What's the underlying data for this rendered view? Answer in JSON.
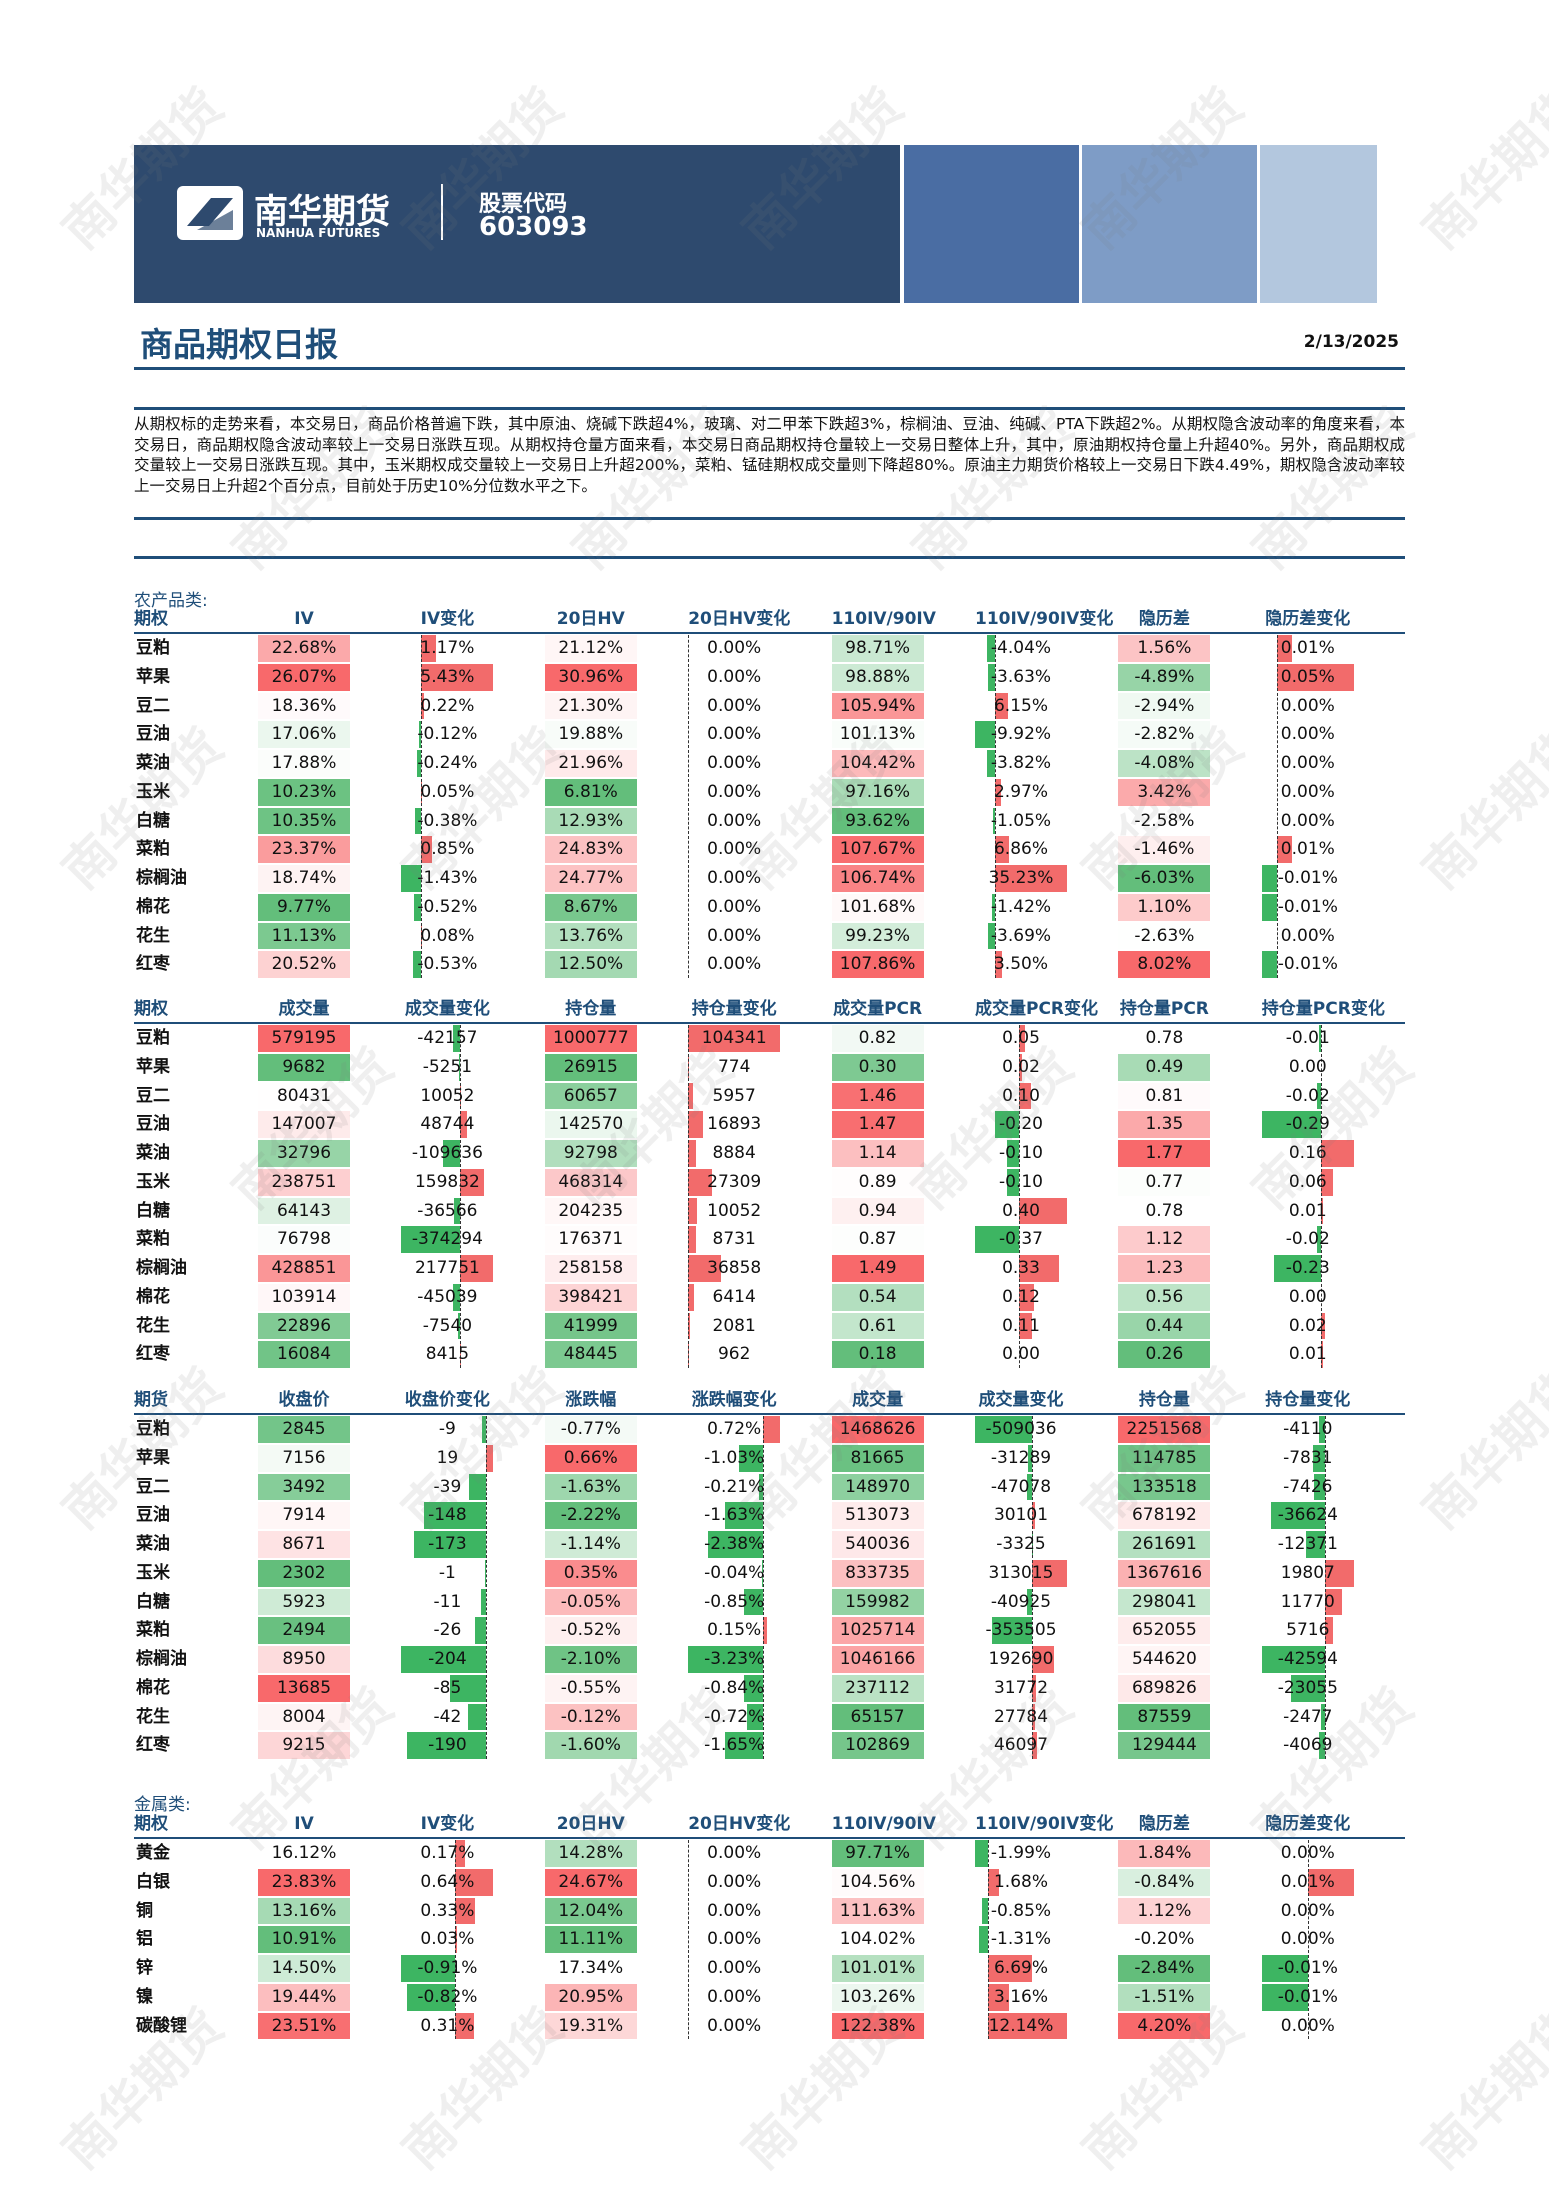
{
  "header": {
    "logo_cn": "南华期货",
    "logo_en": "NANHUA FUTURES",
    "stock_label": "股票代码",
    "stock_code": "603093"
  },
  "title": "商品期权日报",
  "date": "2/13/2025",
  "summary": "从期权标的走势来看，本交易日，商品价格普遍下跌，其中原油、烧碱下跌超4%，玻璃、对二甲苯下跌超3%，棕榈油、豆油、纯碱、PTA下跌超2%。从期权隐含波动率的角度来看，本交易日，商品期权隐含波动率较上一交易日涨跌互现。从期权持仓量方面来看，本交易日商品期权持仓量较上一交易日整体上升，其中，原油期权持仓量上升超40%。另外，商品期权成交量较上一交易日涨跌互现。其中，玉米期权成交量较上一交易日上升超200%，菜粕、锰硅期权成交量则下降超80%。原油主力期货价格较上一交易日下跌4.49%，期权隐含波动率较上一交易日上升超2个百分点，目前处于历史10%分位数水平之下。",
  "watermark": "南华期货",
  "sections": [
    {
      "label": "农产品类:",
      "tables": [
        {
          "header": [
            "期权",
            "IV",
            "IV变化",
            "20日HV",
            "20日HV变化",
            "110IV/90IV",
            "110IV/90IV变化",
            "隐历差",
            "隐历差变化"
          ],
          "rows": [
            [
              "豆粕",
              "22.68%",
              "1.17%",
              "21.12%",
              "0.00%",
              "98.71%",
              "-4.04%",
              "1.56%",
              "0.01%"
            ],
            [
              "苹果",
              "26.07%",
              "5.43%",
              "30.96%",
              "0.00%",
              "98.88%",
              "-3.63%",
              "-4.89%",
              "0.05%"
            ],
            [
              "豆二",
              "18.36%",
              "0.22%",
              "21.30%",
              "0.00%",
              "105.94%",
              "6.15%",
              "-2.94%",
              "0.00%"
            ],
            [
              "豆油",
              "17.06%",
              "-0.12%",
              "19.88%",
              "0.00%",
              "101.13%",
              "-9.92%",
              "-2.82%",
              "0.00%"
            ],
            [
              "菜油",
              "17.88%",
              "-0.24%",
              "21.96%",
              "0.00%",
              "104.42%",
              "-3.82%",
              "-4.08%",
              "0.00%"
            ],
            [
              "玉米",
              "10.23%",
              "0.05%",
              "6.81%",
              "0.00%",
              "97.16%",
              "2.97%",
              "3.42%",
              "0.00%"
            ],
            [
              "白糖",
              "10.35%",
              "-0.38%",
              "12.93%",
              "0.00%",
              "93.62%",
              "-1.05%",
              "-2.58%",
              "0.00%"
            ],
            [
              "菜粕",
              "23.37%",
              "0.85%",
              "24.83%",
              "0.00%",
              "107.67%",
              "6.86%",
              "-1.46%",
              "0.01%"
            ],
            [
              "棕榈油",
              "18.74%",
              "-1.43%",
              "24.77%",
              "0.00%",
              "106.74%",
              "35.23%",
              "-6.03%",
              "-0.01%"
            ],
            [
              "棉花",
              "9.77%",
              "-0.52%",
              "8.67%",
              "0.00%",
              "101.68%",
              "-1.42%",
              "1.10%",
              "-0.01%"
            ],
            [
              "花生",
              "11.13%",
              "0.08%",
              "13.76%",
              "0.00%",
              "99.23%",
              "-3.69%",
              "-2.63%",
              "0.00%"
            ],
            [
              "红枣",
              "20.52%",
              "-0.53%",
              "12.50%",
              "0.00%",
              "107.86%",
              "3.50%",
              "8.02%",
              "-0.01%"
            ]
          ]
        },
        {
          "header": [
            "期权",
            "成交量",
            "成交量变化",
            "持仓量",
            "持仓量变化",
            "成交量PCR",
            "成交量PCR变化",
            "持仓量PCR",
            "持仓量PCR变化"
          ],
          "rows": [
            [
              "豆粕",
              "579195",
              "-42157",
              "1000777",
              "104341",
              "0.82",
              "0.05",
              "0.78",
              "-0.01"
            ],
            [
              "苹果",
              "9682",
              "-5251",
              "26915",
              "774",
              "0.30",
              "0.02",
              "0.49",
              "0.00"
            ],
            [
              "豆二",
              "80431",
              "10052",
              "60657",
              "5957",
              "1.46",
              "0.10",
              "0.81",
              "-0.02"
            ],
            [
              "豆油",
              "147007",
              "48744",
              "142570",
              "16893",
              "1.47",
              "-0.20",
              "1.35",
              "-0.29"
            ],
            [
              "菜油",
              "32796",
              "-109636",
              "92798",
              "8884",
              "1.14",
              "-0.10",
              "1.77",
              "0.16"
            ],
            [
              "玉米",
              "238751",
              "159832",
              "468314",
              "27309",
              "0.89",
              "-0.10",
              "0.77",
              "0.06"
            ],
            [
              "白糖",
              "64143",
              "-36566",
              "204235",
              "10052",
              "0.94",
              "0.40",
              "0.78",
              "0.01"
            ],
            [
              "菜粕",
              "76798",
              "-374294",
              "176371",
              "8731",
              "0.87",
              "-0.37",
              "1.12",
              "-0.02"
            ],
            [
              "棕榈油",
              "428851",
              "217751",
              "258158",
              "36858",
              "1.49",
              "0.33",
              "1.23",
              "-0.23"
            ],
            [
              "棉花",
              "103914",
              "-45039",
              "398421",
              "6414",
              "0.54",
              "0.12",
              "0.56",
              "0.00"
            ],
            [
              "花生",
              "22896",
              "-7540",
              "41999",
              "2081",
              "0.61",
              "0.11",
              "0.44",
              "0.02"
            ],
            [
              "红枣",
              "16084",
              "8415",
              "48445",
              "962",
              "0.18",
              "0.00",
              "0.26",
              "0.01"
            ]
          ]
        },
        {
          "header": [
            "期货",
            "收盘价",
            "收盘价变化",
            "涨跌幅",
            "涨跌幅变化",
            "成交量",
            "成交量变化",
            "持仓量",
            "持仓量变化"
          ],
          "rows": [
            [
              "豆粕",
              "2845",
              "-9",
              "-0.77%",
              "0.72%",
              "1468626",
              "-509036",
              "2251568",
              "-4110"
            ],
            [
              "苹果",
              "7156",
              "19",
              "0.66%",
              "-1.03%",
              "81665",
              "-31289",
              "114785",
              "-7831"
            ],
            [
              "豆二",
              "3492",
              "-39",
              "-1.63%",
              "-0.21%",
              "148970",
              "-47078",
              "133518",
              "-7426"
            ],
            [
              "豆油",
              "7914",
              "-148",
              "-2.22%",
              "-1.63%",
              "513073",
              "30101",
              "678192",
              "-36624"
            ],
            [
              "菜油",
              "8671",
              "-173",
              "-1.14%",
              "-2.38%",
              "540036",
              "-3325",
              "261691",
              "-12371"
            ],
            [
              "玉米",
              "2302",
              "-1",
              "0.35%",
              "-0.04%",
              "833735",
              "313015",
              "1367616",
              "19807"
            ],
            [
              "白糖",
              "5923",
              "-11",
              "-0.05%",
              "-0.85%",
              "159982",
              "-40925",
              "298041",
              "11770"
            ],
            [
              "菜粕",
              "2494",
              "-26",
              "-0.52%",
              "0.15%",
              "1025714",
              "-353505",
              "652055",
              "5716"
            ],
            [
              "棕榈油",
              "8950",
              "-204",
              "-2.10%",
              "-3.23%",
              "1046166",
              "192690",
              "544620",
              "-42594"
            ],
            [
              "棉花",
              "13685",
              "-85",
              "-0.55%",
              "-0.84%",
              "237112",
              "31772",
              "689826",
              "-23055"
            ],
            [
              "花生",
              "8004",
              "-42",
              "-0.12%",
              "-0.72%",
              "65157",
              "27784",
              "87559",
              "-2477"
            ],
            [
              "红枣",
              "9215",
              "-190",
              "-1.60%",
              "-1.65%",
              "102869",
              "46097",
              "129444",
              "-4069"
            ]
          ]
        }
      ]
    },
    {
      "label": "金属类:",
      "tables": [
        {
          "header": [
            "期权",
            "IV",
            "IV变化",
            "20日HV",
            "20日HV变化",
            "110IV/90IV",
            "110IV/90IV变化",
            "隐历差",
            "隐历差变化"
          ],
          "rows": [
            [
              "黄金",
              "16.12%",
              "0.17%",
              "14.28%",
              "0.00%",
              "97.71%",
              "-1.99%",
              "1.84%",
              "0.00%"
            ],
            [
              "白银",
              "23.83%",
              "0.64%",
              "24.67%",
              "0.00%",
              "104.56%",
              "1.68%",
              "-0.84%",
              "0.01%"
            ],
            [
              "铜",
              "13.16%",
              "0.33%",
              "12.04%",
              "0.00%",
              "111.63%",
              "-0.85%",
              "1.12%",
              "0.00%"
            ],
            [
              "铝",
              "10.91%",
              "0.03%",
              "11.11%",
              "0.00%",
              "104.02%",
              "-1.31%",
              "-0.20%",
              "0.00%"
            ],
            [
              "锌",
              "14.50%",
              "-0.91%",
              "17.34%",
              "0.00%",
              "101.01%",
              "6.69%",
              "-2.84%",
              "-0.01%"
            ],
            [
              "镍",
              "19.44%",
              "-0.82%",
              "20.95%",
              "0.00%",
              "103.26%",
              "3.16%",
              "-1.51%",
              "-0.01%"
            ],
            [
              "碳酸锂",
              "23.51%",
              "0.31%",
              "19.31%",
              "0.00%",
              "122.38%",
              "12.14%",
              "4.20%",
              "0.00%"
            ]
          ]
        }
      ]
    }
  ]
}
